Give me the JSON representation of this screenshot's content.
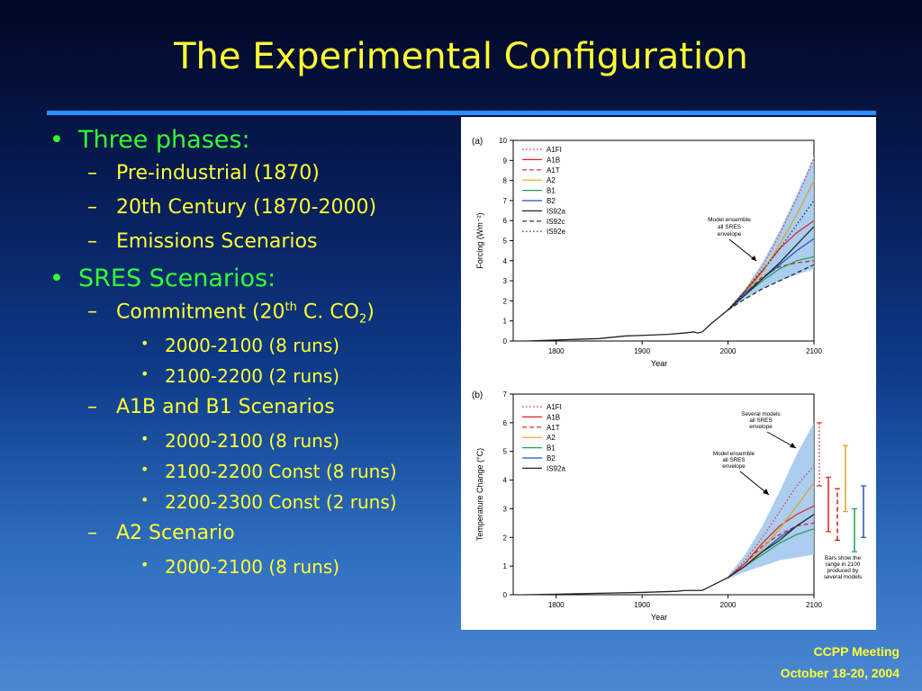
{
  "slide": {
    "title": "The Experimental Configuration",
    "footer_line1": "CCPP Meeting",
    "footer_line2": "October 18-20, 2004"
  },
  "bullets": {
    "b1": "Three phases:",
    "b1_1": "Pre-industrial (1870)",
    "b1_2": "20th Century (1870-2000)",
    "b1_3": "Emissions Scenarios",
    "b2": "SRES Scenarios:",
    "b2_1_a": "Commitment (20",
    "b2_1_sup": "th",
    "b2_1_b": " C. CO",
    "b2_1_sub": "2",
    "b2_1_c": ")",
    "b2_1_1": "2000-2100 (8 runs)",
    "b2_1_2": "2100-2200 (2 runs)",
    "b2_2": "A1B and B1 Scenarios",
    "b2_2_1": "2000-2100 (8 runs)",
    "b2_2_2": "2100-2200 Const (8 runs)",
    "b2_2_3": "2200-2300 Const (2 runs)",
    "b2_3": "A2 Scenario",
    "b2_3_1": "2000-2100 (8 runs)"
  },
  "colors": {
    "title": "#ffff33",
    "bullet_green": "#33ff33",
    "rule": "#2a90ff",
    "envelope": "#9cc4ec"
  },
  "chart_data": [
    {
      "type": "line",
      "panel_label": "(a)",
      "xlabel": "Year",
      "ylabel": "Forcing (Wm⁻²)",
      "xlim": [
        1750,
        2100
      ],
      "ylim": [
        0,
        10
      ],
      "xticks": [
        1800,
        1900,
        2000,
        2100
      ],
      "yticks": [
        0,
        1,
        2,
        3,
        4,
        5,
        6,
        7,
        8,
        9,
        10
      ],
      "historical": {
        "x": [
          1765,
          1800,
          1850,
          1880,
          1900,
          1930,
          1950,
          1960,
          1965,
          1970,
          1980,
          1990,
          2000
        ],
        "y": [
          0,
          0.05,
          0.12,
          0.25,
          0.28,
          0.33,
          0.4,
          0.45,
          0.4,
          0.45,
          0.85,
          1.2,
          1.55
        ]
      },
      "envelope": {
        "x": [
          2000,
          2020,
          2040,
          2060,
          2080,
          2100
        ],
        "upper": [
          1.6,
          2.6,
          3.9,
          5.5,
          7.3,
          9.2
        ],
        "lower": [
          1.5,
          2.1,
          2.6,
          3.0,
          3.3,
          3.6
        ]
      },
      "series": [
        {
          "name": "A1FI",
          "color": "#e03030",
          "dash": "dot",
          "x": [
            2000,
            2020,
            2040,
            2060,
            2080,
            2100
          ],
          "values": [
            1.55,
            2.5,
            3.7,
            5.3,
            7.1,
            9.1
          ]
        },
        {
          "name": "A1B",
          "color": "#e02020",
          "dash": "solid",
          "x": [
            2000,
            2020,
            2040,
            2060,
            2080,
            2100
          ],
          "values": [
            1.55,
            2.5,
            3.5,
            4.6,
            5.4,
            6.0
          ]
        },
        {
          "name": "A1T",
          "color": "#c82020",
          "dash": "dash",
          "x": [
            2000,
            2020,
            2040,
            2060,
            2080,
            2100
          ],
          "values": [
            1.55,
            2.4,
            3.2,
            3.7,
            3.9,
            4.0
          ]
        },
        {
          "name": "A2",
          "color": "#e0a020",
          "dash": "solid",
          "x": [
            2000,
            2020,
            2040,
            2060,
            2080,
            2100
          ],
          "values": [
            1.55,
            2.4,
            3.4,
            4.8,
            6.3,
            8.0
          ]
        },
        {
          "name": "B1",
          "color": "#20a050",
          "dash": "solid",
          "x": [
            2000,
            2020,
            2040,
            2060,
            2080,
            2100
          ],
          "values": [
            1.55,
            2.3,
            3.0,
            3.6,
            4.0,
            4.2
          ]
        },
        {
          "name": "B2",
          "color": "#2050c0",
          "dash": "solid",
          "x": [
            2000,
            2020,
            2040,
            2060,
            2080,
            2100
          ],
          "values": [
            1.55,
            2.4,
            3.1,
            3.8,
            4.5,
            5.1
          ]
        },
        {
          "name": "IS92a",
          "color": "#202020",
          "dash": "solid",
          "x": [
            2000,
            2020,
            2040,
            2060,
            2080,
            2100
          ],
          "values": [
            1.55,
            2.3,
            3.1,
            3.9,
            4.8,
            5.7
          ]
        },
        {
          "name": "IS92c",
          "color": "#202020",
          "dash": "dash",
          "x": [
            2000,
            2020,
            2040,
            2060,
            2080,
            2100
          ],
          "values": [
            1.55,
            2.1,
            2.6,
            3.0,
            3.4,
            3.8
          ]
        },
        {
          "name": "IS92e",
          "color": "#202020",
          "dash": "dot",
          "x": [
            2000,
            2020,
            2040,
            2060,
            2080,
            2100
          ],
          "values": [
            1.55,
            2.5,
            3.5,
            4.6,
            5.8,
            7.0
          ]
        }
      ],
      "annotations": [
        "Model ensemble",
        "all SRES",
        "envelope"
      ]
    },
    {
      "type": "line",
      "panel_label": "(b)",
      "xlabel": "Year",
      "ylabel": "Temperature Change (°C)",
      "xlim": [
        1750,
        2100
      ],
      "ylim": [
        0,
        7
      ],
      "xticks": [
        1800,
        1900,
        2000,
        2100
      ],
      "yticks": [
        0,
        1,
        2,
        3,
        4,
        5,
        6,
        7
      ],
      "historical": {
        "x": [
          1765,
          1800,
          1850,
          1900,
          1940,
          1950,
          1960,
          1970,
          1980,
          1990,
          2000
        ],
        "y": [
          0,
          0.02,
          0.05,
          0.08,
          0.12,
          0.15,
          0.15,
          0.15,
          0.3,
          0.45,
          0.6
        ]
      },
      "envelope": {
        "x": [
          2000,
          2020,
          2040,
          2060,
          2080,
          2100
        ],
        "upper": [
          0.65,
          1.4,
          2.4,
          3.6,
          4.9,
          6.0
        ],
        "lower": [
          0.55,
          0.8,
          1.0,
          1.2,
          1.3,
          1.4
        ]
      },
      "series": [
        {
          "name": "A1FI",
          "color": "#e03030",
          "dash": "dot",
          "x": [
            2000,
            2020,
            2040,
            2060,
            2080,
            2100
          ],
          "values": [
            0.6,
            1.2,
            2.0,
            2.9,
            3.8,
            4.5
          ]
        },
        {
          "name": "A1B",
          "color": "#e02020",
          "dash": "solid",
          "x": [
            2000,
            2020,
            2040,
            2060,
            2080,
            2100
          ],
          "values": [
            0.6,
            1.1,
            1.8,
            2.4,
            2.8,
            3.1
          ]
        },
        {
          "name": "A1T",
          "color": "#c82020",
          "dash": "dash",
          "x": [
            2000,
            2020,
            2040,
            2060,
            2080,
            2100
          ],
          "values": [
            0.6,
            1.1,
            1.7,
            2.1,
            2.4,
            2.5
          ]
        },
        {
          "name": "A2",
          "color": "#e0a020",
          "dash": "solid",
          "x": [
            2000,
            2020,
            2040,
            2060,
            2080,
            2100
          ],
          "values": [
            0.6,
            1.0,
            1.6,
            2.3,
            3.1,
            3.9
          ]
        },
        {
          "name": "B1",
          "color": "#20a050",
          "dash": "solid",
          "x": [
            2000,
            2020,
            2040,
            2060,
            2080,
            2100
          ],
          "values": [
            0.6,
            1.0,
            1.4,
            1.8,
            2.1,
            2.3
          ]
        },
        {
          "name": "B2",
          "color": "#2050c0",
          "dash": "solid",
          "x": [
            2000,
            2020,
            2040,
            2060,
            2080,
            2100
          ],
          "values": [
            0.6,
            1.0,
            1.5,
            2.0,
            2.4,
            2.8
          ]
        },
        {
          "name": "IS92a",
          "color": "#202020",
          "dash": "solid",
          "x": [
            2000,
            2020,
            2040,
            2060,
            2080,
            2100
          ],
          "values": [
            0.6,
            1.0,
            1.5,
            1.9,
            2.4,
            2.8
          ]
        }
      ],
      "range_bars_2100": [
        {
          "color": "#e03030",
          "dash": "dot",
          "low": 3.8,
          "high": 6.0
        },
        {
          "color": "#e02020",
          "dash": "solid",
          "low": 2.2,
          "high": 4.1
        },
        {
          "color": "#c82020",
          "dash": "dash",
          "low": 1.9,
          "high": 3.7
        },
        {
          "color": "#e0a020",
          "dash": "solid",
          "low": 2.9,
          "high": 5.2
        },
        {
          "color": "#20a050",
          "dash": "solid",
          "low": 1.5,
          "high": 3.0
        },
        {
          "color": "#2050c0",
          "dash": "solid",
          "low": 2.0,
          "high": 3.8
        }
      ],
      "annotations": [
        "Several models",
        "all SRES",
        "envelope",
        "Model ensemble",
        "all SRES",
        "envelope",
        "Bars show the",
        "range in 2100",
        "produced by",
        "several models"
      ]
    }
  ]
}
